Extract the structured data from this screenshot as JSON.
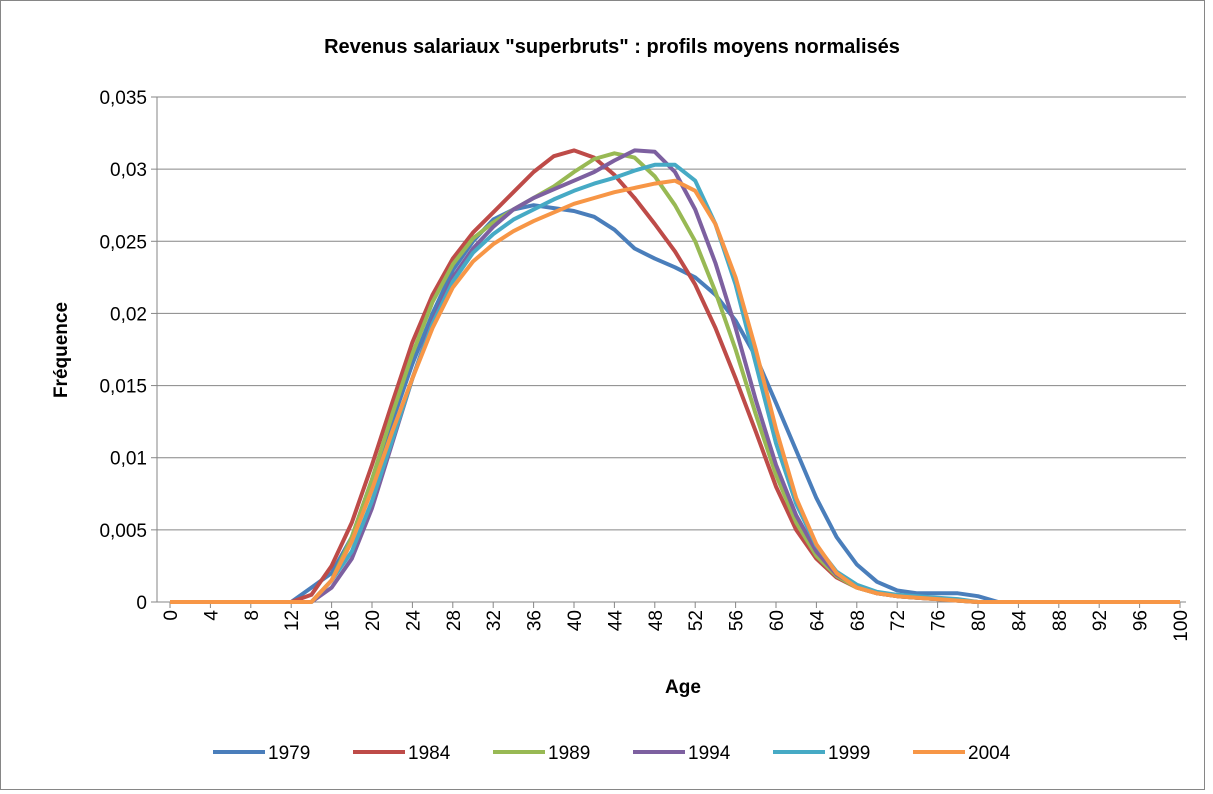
{
  "chart_data": {
    "type": "line",
    "title": "Revenus salariaux \"superbruts\" : profils moyens normalisés",
    "x_label": "Age",
    "y_label": "Fréquence",
    "x": [
      0,
      2,
      4,
      6,
      8,
      10,
      12,
      14,
      16,
      18,
      20,
      22,
      24,
      26,
      28,
      30,
      32,
      34,
      36,
      38,
      40,
      42,
      44,
      46,
      48,
      50,
      52,
      54,
      56,
      58,
      60,
      62,
      64,
      66,
      68,
      70,
      72,
      74,
      76,
      78,
      80,
      82,
      84,
      86,
      88,
      90,
      92,
      94,
      96,
      98,
      100
    ],
    "xlim": [
      0,
      100
    ],
    "xticks": [
      0,
      4,
      8,
      12,
      16,
      20,
      24,
      28,
      32,
      36,
      40,
      44,
      48,
      52,
      56,
      60,
      64,
      68,
      72,
      76,
      80,
      84,
      88,
      92,
      96,
      100
    ],
    "ylim": [
      0,
      0.035
    ],
    "yticks": [
      0,
      {
        "value": 0.005,
        "label": "0,005"
      },
      {
        "value": 0.01,
        "label": "0,01"
      },
      {
        "value": 0.015,
        "label": "0,015"
      },
      {
        "value": 0.02,
        "label": "0,02"
      },
      {
        "value": 0.025,
        "label": "0,025"
      },
      {
        "value": 0.03,
        "label": "0,03"
      },
      {
        "value": 0.035,
        "label": "0,035"
      }
    ],
    "grid": true,
    "legend": "bottom",
    "series": [
      {
        "name": "1979",
        "color": "#4a7ebb",
        "values": [
          0,
          0,
          0,
          0,
          0,
          0,
          0,
          0.001,
          0.002,
          0.0045,
          0.0085,
          0.0125,
          0.0165,
          0.02,
          0.023,
          0.025,
          0.0265,
          0.0272,
          0.0275,
          0.0273,
          0.0271,
          0.0267,
          0.0258,
          0.0245,
          0.0238,
          0.0232,
          0.0225,
          0.0213,
          0.0195,
          0.017,
          0.0138,
          0.0105,
          0.0072,
          0.0045,
          0.0026,
          0.0014,
          0.0008,
          0.0006,
          0.0006,
          0.0006,
          0.0004,
          0,
          0,
          0,
          0,
          0,
          0,
          0,
          0,
          0,
          0
        ]
      },
      {
        "name": "1984",
        "color": "#be4b48",
        "values": [
          0,
          0,
          0,
          0,
          0,
          0,
          0,
          0.0005,
          0.0025,
          0.0055,
          0.0095,
          0.0138,
          0.018,
          0.0213,
          0.0238,
          0.0256,
          0.027,
          0.0284,
          0.0298,
          0.0309,
          0.0313,
          0.0308,
          0.0296,
          0.028,
          0.0262,
          0.0243,
          0.022,
          0.019,
          0.0155,
          0.0118,
          0.008,
          0.005,
          0.003,
          0.0017,
          0.001,
          0.0006,
          0.0004,
          0.0003,
          0.0002,
          0.0001,
          0,
          0,
          0,
          0,
          0,
          0,
          0,
          0,
          0,
          0,
          0
        ]
      },
      {
        "name": "1989",
        "color": "#98b954",
        "values": [
          0,
          0,
          0,
          0,
          0,
          0,
          0,
          0,
          0.0015,
          0.0045,
          0.0085,
          0.013,
          0.0172,
          0.0208,
          0.0234,
          0.0252,
          0.0263,
          0.0272,
          0.028,
          0.0288,
          0.0298,
          0.0307,
          0.0311,
          0.0308,
          0.0295,
          0.0275,
          0.025,
          0.0215,
          0.0175,
          0.013,
          0.0088,
          0.0055,
          0.0032,
          0.0018,
          0.001,
          0.0006,
          0.0004,
          0.0003,
          0.0002,
          0.0001,
          0,
          0,
          0,
          0,
          0,
          0,
          0,
          0,
          0,
          0,
          0
        ]
      },
      {
        "name": "1994",
        "color": "#7d60a0",
        "values": [
          0,
          0,
          0,
          0,
          0,
          0,
          0,
          0,
          0.001,
          0.003,
          0.0065,
          0.011,
          0.0155,
          0.0195,
          0.0225,
          0.0245,
          0.026,
          0.0272,
          0.028,
          0.0286,
          0.0292,
          0.0298,
          0.0306,
          0.0313,
          0.0312,
          0.0298,
          0.0272,
          0.0235,
          0.019,
          0.014,
          0.0095,
          0.006,
          0.0035,
          0.0019,
          0.0011,
          0.0006,
          0.0004,
          0.0003,
          0.0002,
          0.0001,
          0,
          0,
          0,
          0,
          0,
          0,
          0,
          0,
          0,
          0,
          0
        ]
      },
      {
        "name": "1999",
        "color": "#46aac5",
        "values": [
          0,
          0,
          0,
          0,
          0,
          0,
          0,
          0,
          0.0015,
          0.0035,
          0.007,
          0.0112,
          0.0155,
          0.0193,
          0.0222,
          0.0242,
          0.0255,
          0.0265,
          0.0272,
          0.0279,
          0.0285,
          0.029,
          0.0294,
          0.0299,
          0.0303,
          0.0303,
          0.0292,
          0.0262,
          0.022,
          0.0165,
          0.011,
          0.0068,
          0.0039,
          0.0021,
          0.0012,
          0.0007,
          0.0005,
          0.0004,
          0.0003,
          0.0002,
          0,
          0,
          0,
          0,
          0,
          0,
          0,
          0,
          0,
          0,
          0
        ]
      },
      {
        "name": "2004",
        "color": "#f79646",
        "values": [
          0,
          0,
          0,
          0,
          0,
          0,
          0,
          0,
          0.0015,
          0.0042,
          0.0078,
          0.0118,
          0.0155,
          0.019,
          0.0218,
          0.0236,
          0.0248,
          0.0257,
          0.0264,
          0.027,
          0.0276,
          0.028,
          0.0284,
          0.0287,
          0.029,
          0.0292,
          0.0285,
          0.0262,
          0.0225,
          0.0175,
          0.012,
          0.0072,
          0.004,
          0.002,
          0.001,
          0.0006,
          0.0004,
          0.0003,
          0.0002,
          0.0001,
          0,
          0,
          0,
          0,
          0,
          0,
          0,
          0,
          0,
          0,
          0
        ]
      }
    ]
  }
}
